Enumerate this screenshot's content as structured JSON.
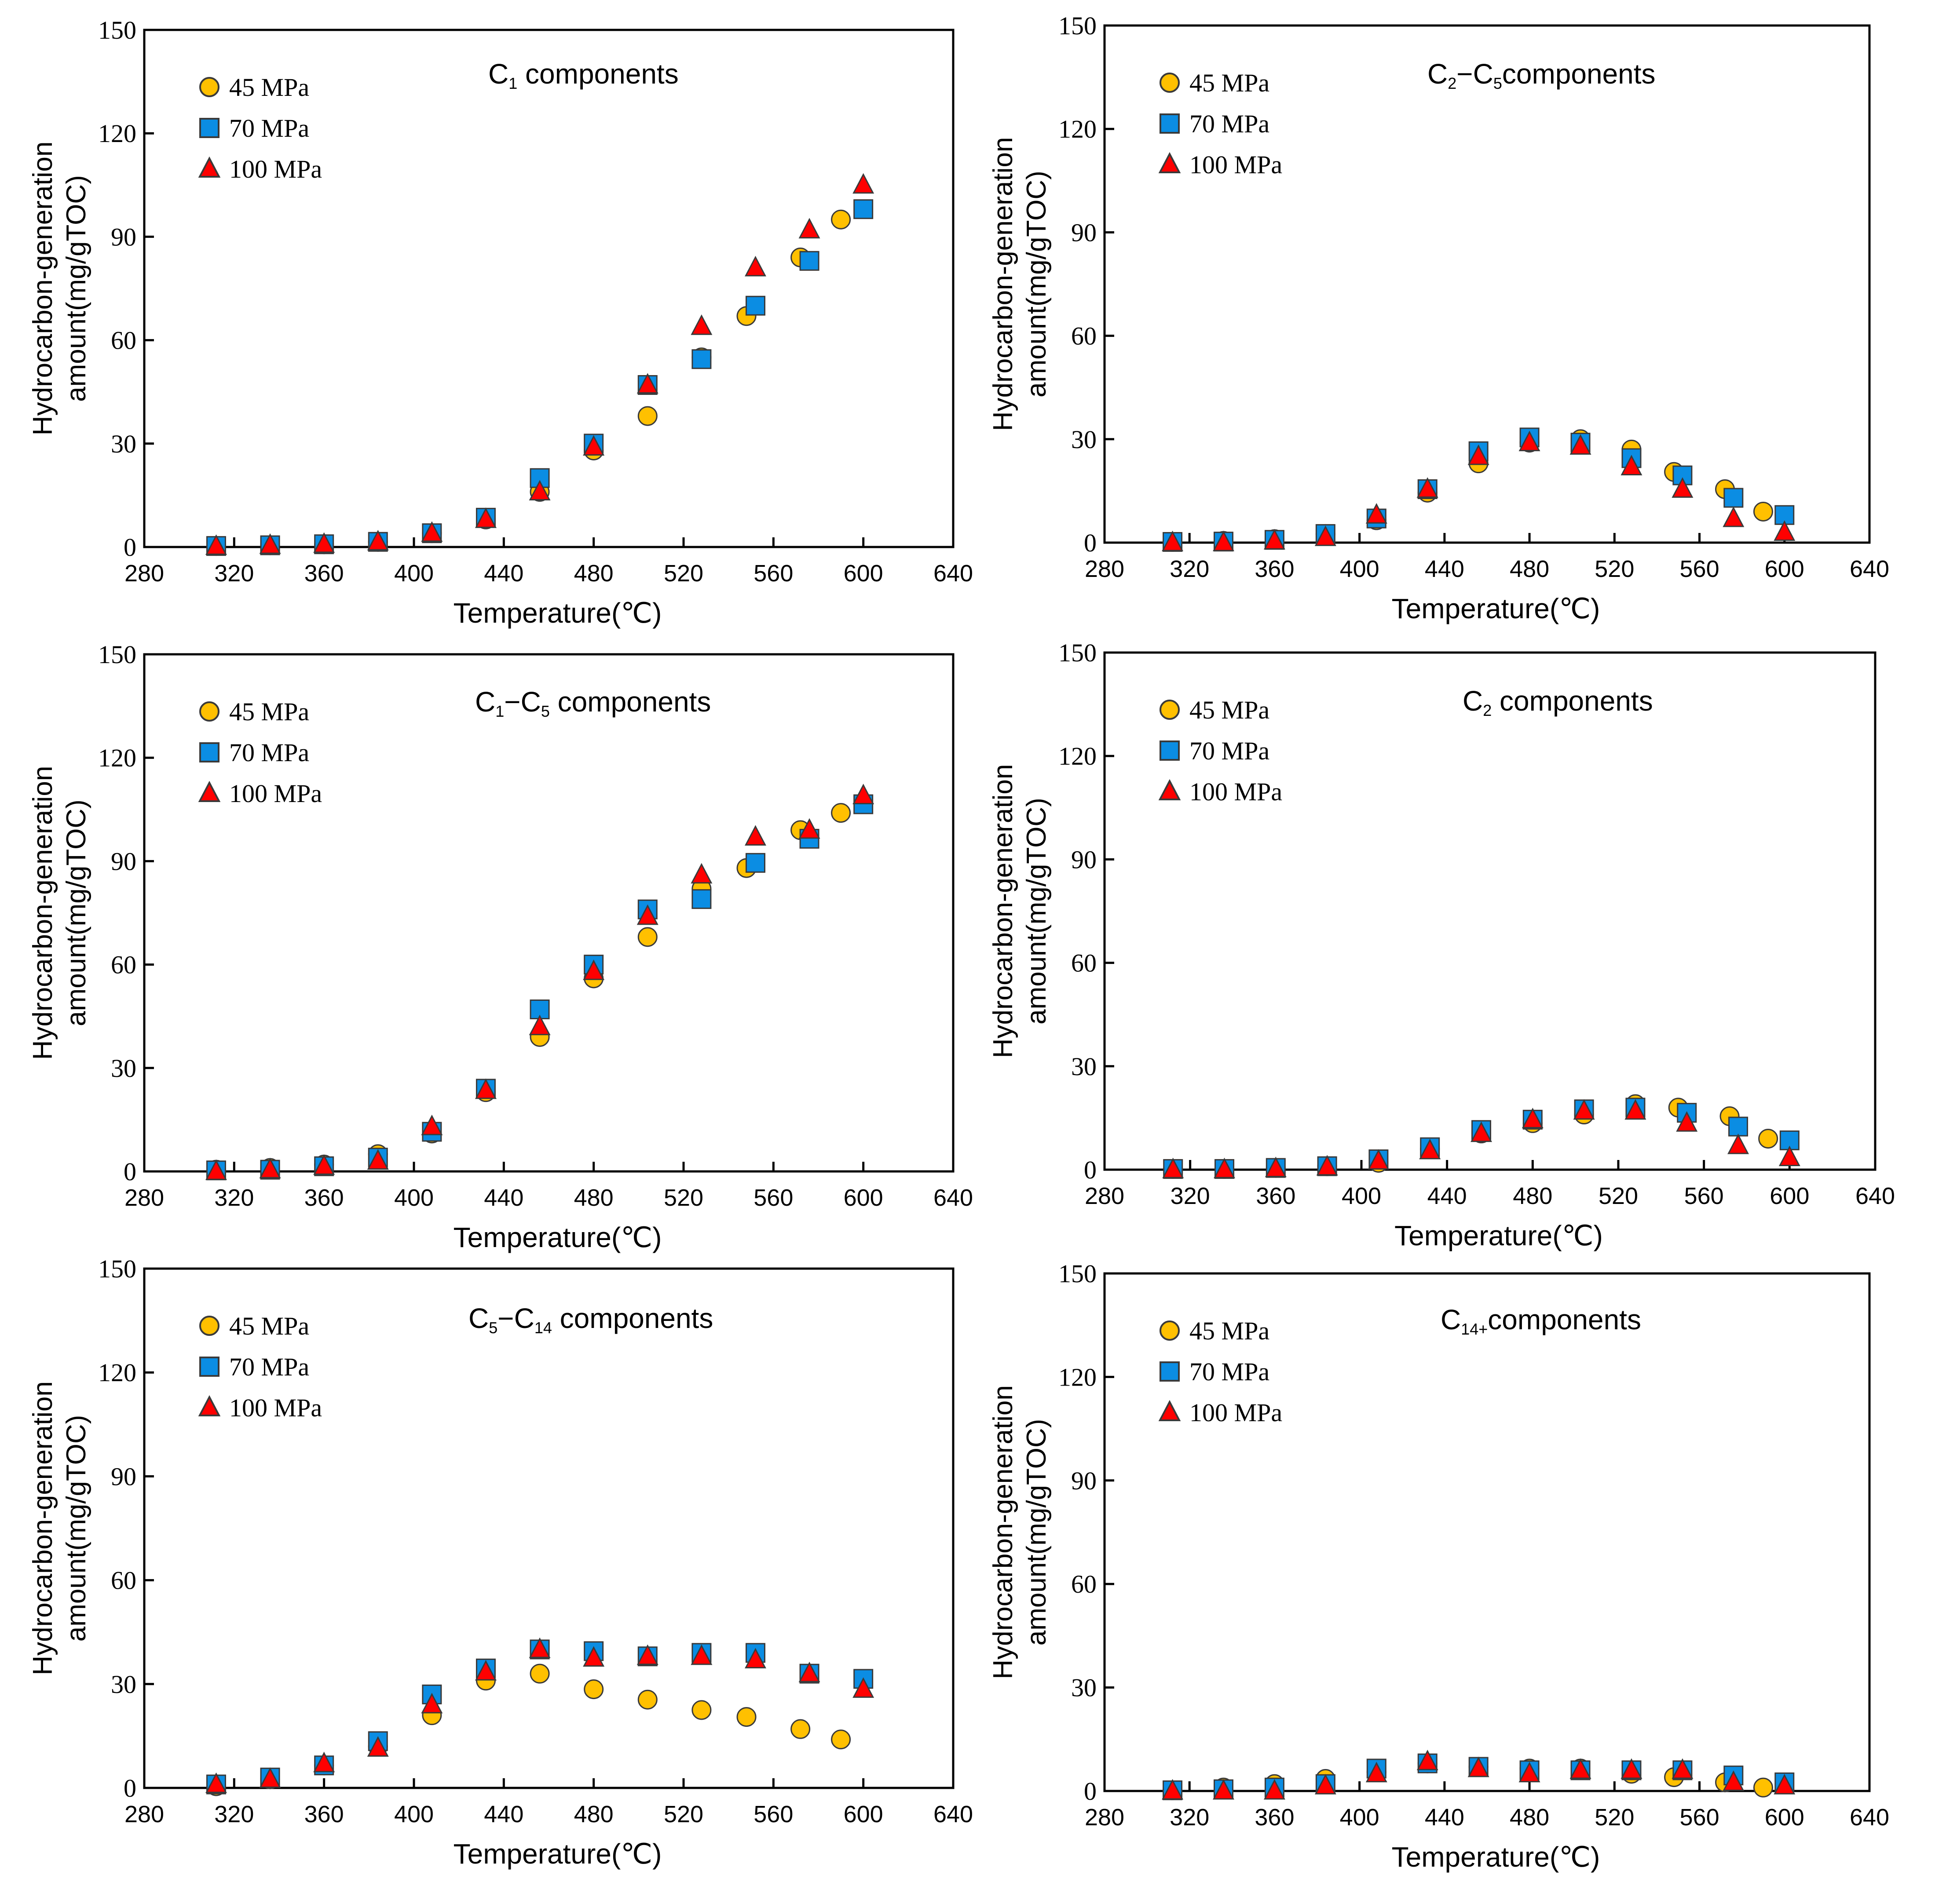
{
  "x_axis_label": "Temperature(℃)",
  "y_axis_label_line1": "Hydrocarbon-generation",
  "y_axis_label_line2": "amount(mg/gTOC)",
  "legend_labels": [
    "45 MPa",
    "70 MPa",
    "100 MPa"
  ],
  "series_colors": {
    "45 MPa": "#FFC000",
    "70 MPa": "#0B8DE3",
    "100 MPa": "#FF0000"
  },
  "marker_shapes": {
    "45 MPa": "circle",
    "70 MPa": "square",
    "100 MPa": "triangle"
  },
  "x_ticks": [
    280,
    320,
    360,
    400,
    440,
    480,
    520,
    560,
    600,
    640
  ],
  "y_ticks": [
    0,
    30,
    60,
    90,
    120,
    150
  ],
  "chart_data": [
    {
      "type": "scatter",
      "title_main": "C",
      "title_sub": "1",
      "title_main2": "",
      "title_sub2": "",
      "title_suffix": " components",
      "xlabel": "Temperature(℃)",
      "ylabel": "Hydrocarbon-generation amount(mg/gTOC)",
      "xlim": [
        280,
        640
      ],
      "ylim": [
        0,
        150
      ],
      "series": [
        {
          "name": "45 MPa",
          "x": [
            312,
            336,
            360,
            384,
            408,
            432,
            456,
            480,
            504,
            528,
            548,
            572,
            590
          ],
          "y": [
            0.3,
            0.5,
            0.8,
            1.5,
            4,
            8,
            16,
            28,
            38,
            55,
            67,
            84,
            95
          ]
        },
        {
          "name": "70 MPa",
          "x": [
            312,
            336,
            360,
            384,
            408,
            432,
            456,
            480,
            504,
            528,
            552,
            576,
            600
          ],
          "y": [
            0.3,
            0.5,
            0.8,
            1.5,
            4,
            8.5,
            20,
            30,
            47,
            54.5,
            70,
            83,
            98
          ]
        },
        {
          "name": "100 MPa",
          "x": [
            312,
            336,
            360,
            384,
            408,
            432,
            456,
            480,
            504,
            528,
            552,
            576,
            600
          ],
          "y": [
            0.2,
            0.5,
            0.8,
            1.5,
            4,
            8,
            16,
            29,
            47,
            64,
            81,
            92,
            105
          ]
        }
      ]
    },
    {
      "type": "scatter",
      "title_main": "C",
      "title_sub": "2",
      "title_main2": "−C",
      "title_sub2": "5",
      "title_suffix": "components",
      "xlabel": "Temperature(℃)",
      "ylabel": "Hydrocarbon-generation amount(mg/gTOC)",
      "xlim": [
        280,
        640
      ],
      "ylim": [
        0,
        150
      ],
      "series": [
        {
          "name": "45 MPa",
          "x": [
            312,
            336,
            360,
            384,
            408,
            432,
            456,
            480,
            504,
            528,
            548,
            572,
            590
          ],
          "y": [
            0.2,
            0.5,
            1,
            2.5,
            6.5,
            14.5,
            23,
            29,
            30,
            27,
            20.5,
            15.5,
            9
          ]
        },
        {
          "name": "70 MPa",
          "x": [
            312,
            336,
            360,
            384,
            408,
            432,
            456,
            480,
            504,
            528,
            552,
            576,
            600
          ],
          "y": [
            0.2,
            0.3,
            0.8,
            2.5,
            7,
            15.5,
            26.5,
            30.5,
            29,
            24.5,
            19.5,
            13,
            8
          ]
        },
        {
          "name": "100 MPa",
          "x": [
            312,
            336,
            360,
            384,
            408,
            432,
            456,
            480,
            504,
            528,
            552,
            576,
            600
          ],
          "y": [
            0,
            0,
            0.5,
            1.5,
            8,
            15.5,
            25,
            29,
            28,
            22,
            15.5,
            7,
            3
          ]
        }
      ]
    },
    {
      "type": "scatter",
      "title_main": "C",
      "title_sub": "1",
      "title_main2": "−C",
      "title_sub2": "5",
      "title_suffix": " components",
      "xlabel": "Temperature(℃)",
      "ylabel": "Hydrocarbon-generation amount(mg/gTOC)",
      "xlim": [
        280,
        640
      ],
      "ylim": [
        0,
        150
      ],
      "series": [
        {
          "name": "45 MPa",
          "x": [
            312,
            336,
            360,
            384,
            408,
            432,
            456,
            480,
            504,
            528,
            548,
            572,
            590
          ],
          "y": [
            0.5,
            1,
            2,
            5,
            11,
            23,
            39,
            56,
            68,
            82,
            88,
            99,
            104
          ]
        },
        {
          "name": "70 MPa",
          "x": [
            312,
            336,
            360,
            384,
            408,
            432,
            456,
            480,
            504,
            528,
            552,
            576,
            600
          ],
          "y": [
            0.3,
            0.5,
            1.5,
            4,
            11.5,
            24,
            47,
            60,
            76,
            79,
            89.5,
            96.5,
            106.5
          ]
        },
        {
          "name": "100 MPa",
          "x": [
            312,
            336,
            360,
            384,
            408,
            432,
            456,
            480,
            504,
            528,
            552,
            576,
            600
          ],
          "y": [
            0,
            0.5,
            1.5,
            3,
            13,
            23.5,
            42,
            58,
            74,
            86,
            97,
            99,
            109
          ]
        }
      ]
    },
    {
      "type": "scatter",
      "title_main": "C",
      "title_sub": "2",
      "title_main2": "",
      "title_sub2": "",
      "title_suffix": " components",
      "xlabel": "Temperature(℃)",
      "ylabel": "Hydrocarbon-generation amount(mg/gTOC)",
      "xlim": [
        280,
        640
      ],
      "ylim": [
        0,
        150
      ],
      "series": [
        {
          "name": "45 MPa",
          "x": [
            312,
            336,
            360,
            384,
            408,
            432,
            456,
            480,
            504,
            528,
            548,
            572,
            590
          ],
          "y": [
            0.2,
            0.2,
            0.5,
            1,
            2,
            6,
            10.5,
            13.5,
            16,
            19,
            18,
            15.5,
            9
          ]
        },
        {
          "name": "70 MPa",
          "x": [
            312,
            336,
            360,
            384,
            408,
            432,
            456,
            480,
            504,
            528,
            552,
            576,
            600
          ],
          "y": [
            0.2,
            0.2,
            0.5,
            1,
            3,
            6.5,
            11.5,
            14.5,
            17.5,
            18,
            16.5,
            12.5,
            8.5
          ]
        },
        {
          "name": "100 MPa",
          "x": [
            312,
            336,
            360,
            384,
            408,
            432,
            456,
            480,
            504,
            528,
            552,
            576,
            600
          ],
          "y": [
            0,
            0,
            0.3,
            0.8,
            2.5,
            5.5,
            10.5,
            14.5,
            17,
            17,
            13.5,
            7,
            3.5
          ]
        }
      ]
    },
    {
      "type": "scatter",
      "title_main": "C",
      "title_sub": "5",
      "title_main2": "−C",
      "title_sub2": "14",
      "title_suffix": " components",
      "xlabel": "Temperature(℃)",
      "ylabel": "Hydrocarbon-generation amount(mg/gTOC)",
      "xlim": [
        280,
        640
      ],
      "ylim": [
        0,
        150
      ],
      "series": [
        {
          "name": "45 MPa",
          "x": [
            312,
            336,
            360,
            384,
            408,
            432,
            456,
            480,
            504,
            528,
            548,
            572,
            590
          ],
          "y": [
            0.5,
            2.5,
            6.5,
            12,
            21,
            31,
            33,
            28.5,
            25.5,
            22.5,
            20.5,
            17,
            14
          ]
        },
        {
          "name": "70 MPa",
          "x": [
            312,
            336,
            360,
            384,
            408,
            432,
            456,
            480,
            504,
            528,
            552,
            576,
            600
          ],
          "y": [
            1,
            3,
            6.5,
            13.5,
            27,
            34.5,
            40,
            39.5,
            38,
            39,
            39,
            33,
            31.5
          ]
        },
        {
          "name": "100 MPa",
          "x": [
            312,
            336,
            360,
            384,
            408,
            432,
            456,
            480,
            504,
            528,
            552,
            576,
            600
          ],
          "y": [
            1,
            2.5,
            7,
            11.5,
            24,
            33.5,
            40,
            37.5,
            38,
            38,
            37,
            33,
            28.5
          ]
        }
      ]
    },
    {
      "type": "scatter",
      "title_main": "C",
      "title_sub": "14+",
      "title_main2": "",
      "title_sub2": "",
      "title_suffix": "components",
      "xlabel": "Temperature(℃)",
      "ylabel": "Hydrocarbon-generation amount(mg/gTOC)",
      "xlim": [
        280,
        640
      ],
      "ylim": [
        0,
        150
      ],
      "series": [
        {
          "name": "45 MPa",
          "x": [
            312,
            336,
            360,
            384,
            408,
            432,
            456,
            480,
            504,
            528,
            548,
            572,
            590
          ],
          "y": [
            0.2,
            1,
            2,
            3.5,
            5.5,
            8,
            7,
            6.5,
            6.5,
            5,
            4,
            2.5,
            1
          ]
        },
        {
          "name": "70 MPa",
          "x": [
            312,
            336,
            360,
            384,
            408,
            432,
            456,
            480,
            504,
            528,
            552,
            576,
            600
          ],
          "y": [
            0.2,
            0.5,
            1,
            2,
            6.5,
            8,
            7,
            6,
            6,
            6,
            6,
            4.5,
            2.5
          ]
        },
        {
          "name": "100 MPa",
          "x": [
            312,
            336,
            360,
            384,
            408,
            432,
            456,
            480,
            504,
            528,
            552,
            576,
            600
          ],
          "y": [
            0,
            0,
            0,
            1.5,
            5,
            8.5,
            6.5,
            5,
            6,
            6,
            6,
            2.5,
            1.5
          ]
        }
      ]
    }
  ]
}
